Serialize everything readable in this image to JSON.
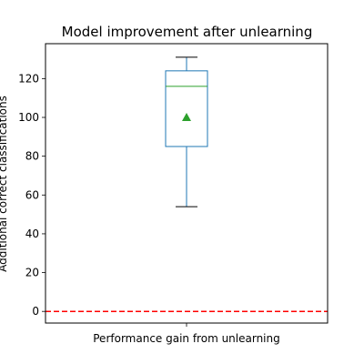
{
  "chart_data": {
    "type": "box",
    "title": "Model improvement after unlearning",
    "xlabel": "",
    "ylabel": "Additional correct classifications",
    "categories": [
      "Performance gain from unlearning"
    ],
    "ylim": [
      -6,
      138
    ],
    "yticks": [
      0,
      20,
      40,
      60,
      80,
      100,
      120
    ],
    "grid": false,
    "boxes": [
      {
        "category": "Performance gain from unlearning",
        "whisker_low": 54,
        "q1": 85,
        "median": 116,
        "q3": 124,
        "whisker_high": 131,
        "mean": 100
      }
    ],
    "reference_line": {
      "y": 0,
      "style": "dashed"
    },
    "colors": {
      "box": "#1f77b4",
      "median": "#2ca02c",
      "mean_marker": "#2ca02c",
      "whisker_cap": "#000000",
      "reference_line": "#ff0000"
    }
  }
}
